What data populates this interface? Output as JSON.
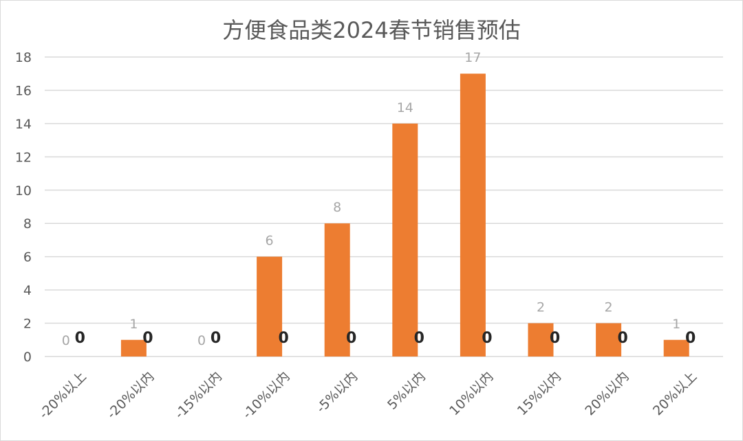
{
  "chart_data": {
    "type": "bar",
    "title": "方便食品类2024春节销售预估",
    "categories": [
      "-20%以上",
      "-20%以内",
      "-15%以内",
      "-10%以内",
      "-5%以内",
      "5%以内",
      "10%以内",
      "15%以内",
      "20%以内",
      "20%以上"
    ],
    "series": [
      {
        "values": [
          0,
          1,
          0,
          6,
          8,
          14,
          17,
          2,
          2,
          1
        ],
        "color": "#ed7d31"
      },
      {
        "values": [
          0,
          0,
          0,
          0,
          0,
          0,
          0,
          0,
          0,
          0
        ]
      }
    ],
    "ylim": [
      0,
      18
    ],
    "yticks": [
      0,
      2,
      4,
      6,
      8,
      10,
      12,
      14,
      16,
      18
    ],
    "grid": true,
    "legend": "none"
  }
}
